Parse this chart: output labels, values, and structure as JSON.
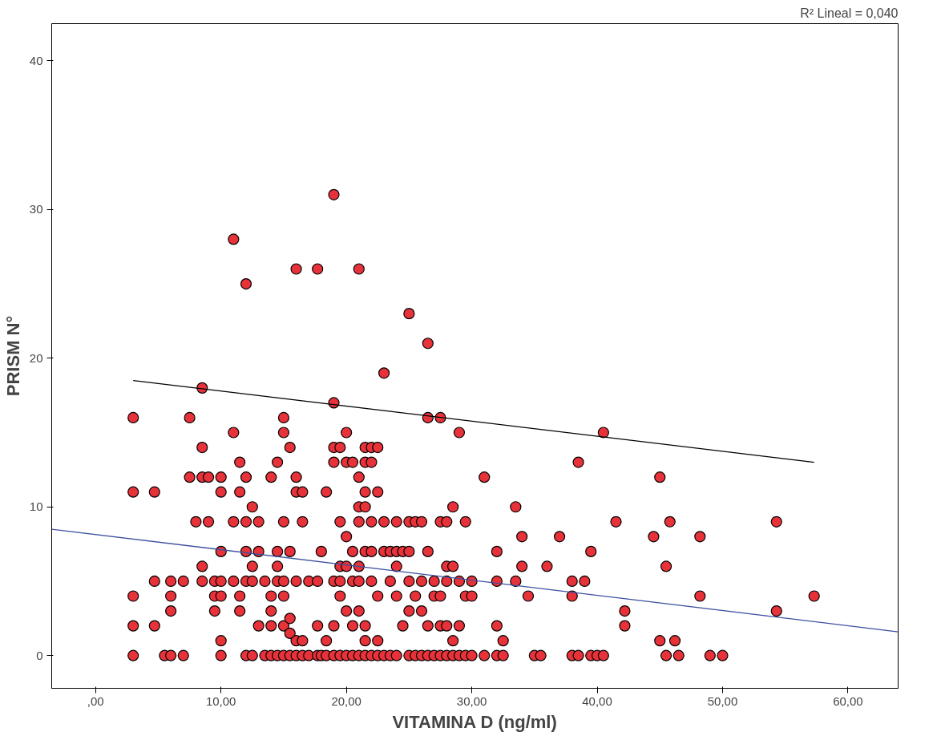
{
  "chart_data": {
    "type": "scatter",
    "xlabel": "VITAMINA D (ng/ml)",
    "ylabel": "PRISM N°",
    "annotations": [
      "R² Lineal = 0,040"
    ],
    "xlim": [
      -3.5,
      64
    ],
    "ylim": [
      -2.2,
      42.5
    ],
    "xticks": [
      {
        "value": 0,
        "label": ",00"
      },
      {
        "value": 10,
        "label": "10,00"
      },
      {
        "value": 20,
        "label": "20,00"
      },
      {
        "value": 30,
        "label": "30,00"
      },
      {
        "value": 40,
        "label": "40,00"
      },
      {
        "value": 50,
        "label": "50,00"
      },
      {
        "value": 60,
        "label": "60,00"
      }
    ],
    "yticks": [
      0,
      10,
      20,
      30,
      40
    ],
    "grid": false,
    "series": [
      {
        "marker": "circle",
        "color": "#e8323a",
        "x": [
          3,
          3,
          3,
          3,
          3,
          4.7,
          4.7,
          4.7,
          5.5,
          6,
          6,
          6,
          6,
          7,
          7,
          7.5,
          7.5,
          8,
          8.5,
          8.5,
          8.5,
          8.5,
          8.5,
          9,
          9,
          9.5,
          9.5,
          9.5,
          10,
          10,
          10,
          10,
          10,
          10,
          10,
          11,
          11,
          11,
          11,
          11.5,
          11.5,
          11.5,
          11.5,
          12,
          12,
          12,
          12,
          12,
          12,
          12.5,
          12.5,
          12.5,
          12.5,
          13,
          13,
          13,
          13.5,
          13.5,
          14,
          14,
          14,
          14,
          14,
          14.5,
          14.5,
          14.5,
          14.5,
          14.5,
          15,
          15,
          15,
          15,
          15,
          15,
          15,
          15.5,
          15.5,
          15.5,
          15.5,
          15.5,
          16,
          16,
          16,
          16,
          16,
          16,
          16.5,
          16.5,
          16.5,
          16.5,
          17,
          17,
          17.7,
          17.7,
          17.7,
          17.7,
          18,
          18,
          18.4,
          18.4,
          18.4,
          19,
          19,
          19,
          19,
          19,
          19,
          19,
          19.5,
          19.5,
          19.5,
          19.5,
          19.5,
          19.5,
          20,
          20,
          20,
          20,
          20,
          20,
          20.5,
          20.5,
          20.5,
          20.5,
          20.5,
          21,
          21,
          21,
          21,
          21,
          21,
          21,
          21,
          21.5,
          21.5,
          21.5,
          21.5,
          21.5,
          21.5,
          21.5,
          21.5,
          22,
          22,
          22,
          22,
          22,
          22,
          22.5,
          22.5,
          22.5,
          22.5,
          22.5,
          23,
          23,
          23,
          23,
          23.5,
          23.5,
          23.5,
          24,
          24,
          24,
          24,
          24,
          24.5,
          24.5,
          25,
          25,
          25,
          25,
          25,
          25,
          25.5,
          25.5,
          25.5,
          26,
          26,
          26,
          26,
          26.5,
          26.5,
          26.5,
          26.5,
          26.5,
          27,
          27,
          27,
          27.5,
          27.5,
          27.5,
          27.5,
          27.5,
          28,
          28,
          28,
          28,
          28,
          28.5,
          28.5,
          28.5,
          28.5,
          29,
          29,
          29,
          29,
          29.5,
          29.5,
          29.5,
          30,
          30,
          30,
          31,
          31,
          32,
          32,
          32,
          32,
          32.5,
          32.5,
          33.5,
          33.5,
          34,
          34,
          34.5,
          35,
          35.5,
          36,
          37,
          38,
          38,
          38,
          38.5,
          38.5,
          39,
          39.5,
          39.5,
          40,
          40.5,
          40.5,
          41.5,
          42.2,
          42.2,
          44.5,
          45,
          45,
          45.5,
          45.5,
          45.8,
          46.2,
          46.5,
          48.2,
          48.2,
          49,
          50,
          54.3,
          54.3,
          57.3
        ],
        "values": [
          16,
          11,
          4,
          2,
          0,
          11,
          5,
          2,
          0,
          0,
          3,
          4,
          5,
          5,
          0,
          16,
          12,
          9,
          18,
          12,
          6,
          5,
          14,
          9,
          12,
          5,
          4,
          3,
          12,
          11,
          7,
          5,
          4,
          1,
          0,
          28,
          15,
          9,
          5,
          13,
          11,
          3,
          4,
          25,
          12,
          9,
          0,
          5,
          7,
          10,
          6,
          5,
          0,
          9,
          7,
          2,
          5,
          0,
          12,
          4,
          3,
          2,
          0,
          13,
          7,
          5,
          6,
          0,
          16,
          15,
          9,
          5,
          4,
          2,
          0,
          14,
          7,
          2.5,
          1.5,
          0,
          26,
          12,
          11,
          5,
          1,
          0,
          11,
          9,
          1,
          0,
          5,
          0,
          26,
          5,
          2,
          0,
          7,
          0,
          11,
          1,
          0,
          31,
          17,
          14,
          13,
          5,
          2,
          0,
          14,
          9,
          6,
          5,
          4,
          0,
          15,
          13,
          8,
          6,
          3,
          0,
          13,
          7,
          5,
          2,
          0,
          26,
          12,
          10,
          9,
          6,
          5,
          3,
          0,
          14,
          11,
          13,
          10,
          7,
          2,
          1,
          0,
          14,
          13,
          9,
          7,
          5,
          0,
          14,
          11,
          4,
          1,
          0,
          19,
          9,
          7,
          0,
          7,
          5,
          0,
          9,
          7,
          6,
          4,
          0,
          7,
          2,
          23,
          9,
          7,
          5,
          3,
          0,
          9,
          4,
          0,
          9,
          5,
          3,
          0,
          21,
          16,
          7,
          2,
          0,
          5,
          4,
          0,
          16,
          9,
          4,
          2,
          0,
          9,
          6,
          5,
          2,
          0,
          10,
          6,
          1,
          0,
          15,
          5,
          2,
          0,
          9,
          4,
          0,
          5,
          4,
          0,
          12,
          0,
          7,
          5,
          2,
          0,
          1,
          0,
          10,
          5,
          8,
          6,
          4,
          0,
          0,
          6,
          8,
          5,
          4,
          0,
          13,
          0,
          5,
          0,
          7,
          0,
          15,
          0,
          9,
          3,
          2,
          8,
          12,
          1,
          6,
          0,
          9,
          1,
          0,
          8,
          4,
          0,
          0,
          9,
          3,
          4
        ]
      },
      {
        "type": "line",
        "color": "#000000",
        "x": [
          3,
          57.3
        ],
        "values": [
          18.5,
          13
        ]
      },
      {
        "type": "line",
        "color": "#3c4fa0",
        "x": [
          -3.5,
          64
        ],
        "values": [
          8.5,
          1.6
        ]
      }
    ]
  }
}
